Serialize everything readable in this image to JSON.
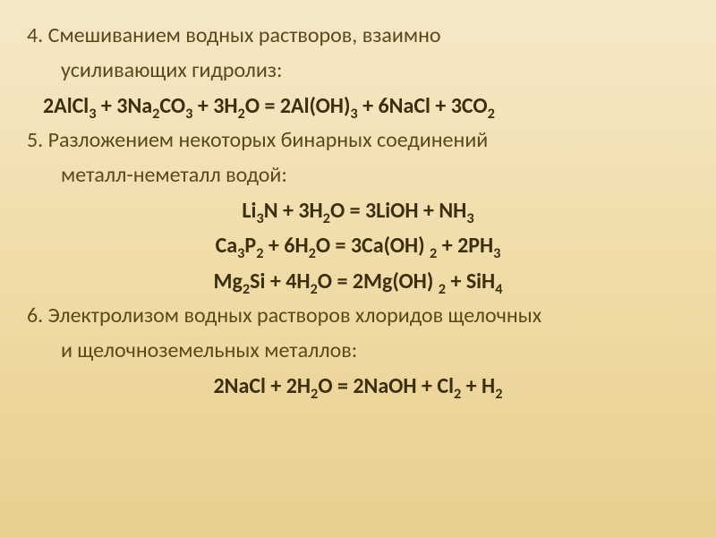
{
  "colors": {
    "background_top": "#f5e9c8",
    "background_mid": "#f0dca8",
    "background_bottom": "#e8cf8f",
    "text_body": "#5a4a1a",
    "text_formula": "#3a2f0e"
  },
  "typography": {
    "body_fontsize_pt": 18,
    "formula_fontsize_pt": 18,
    "formula_weight": 600,
    "family": "Calibri"
  },
  "content": {
    "item4": {
      "num_text": "4. Смешиванием водных растворов, взаимно",
      "cont": "усиливающих гидролиз:",
      "eq": "2AlCl₃ + 3Na₂CO₃ + 3H₂O = 2Al(OH)₃ + 6NaCl + 3CO₂"
    },
    "item5": {
      "num_text": "5. Разложением некоторых бинарных соединений",
      "cont": "металл-неметалл водой:",
      "eqs": [
        "Li₃N + 3H₂O = 3LiOH + NH₃",
        "Ca₃P₂ + 6H₂O = 3Ca(OH) ₂ + 2PH₃",
        "Mg₂Si + 4H₂O = 2Mg(OH) ₂ + SiH₄"
      ]
    },
    "item6": {
      "num_text": "6. Электролизом водных растворов хлоридов щелочных",
      "cont": "и щелочноземельных металлов:",
      "eq": "2NaCl + 2H₂O = 2NaOH + Cl₂ + H₂"
    }
  }
}
